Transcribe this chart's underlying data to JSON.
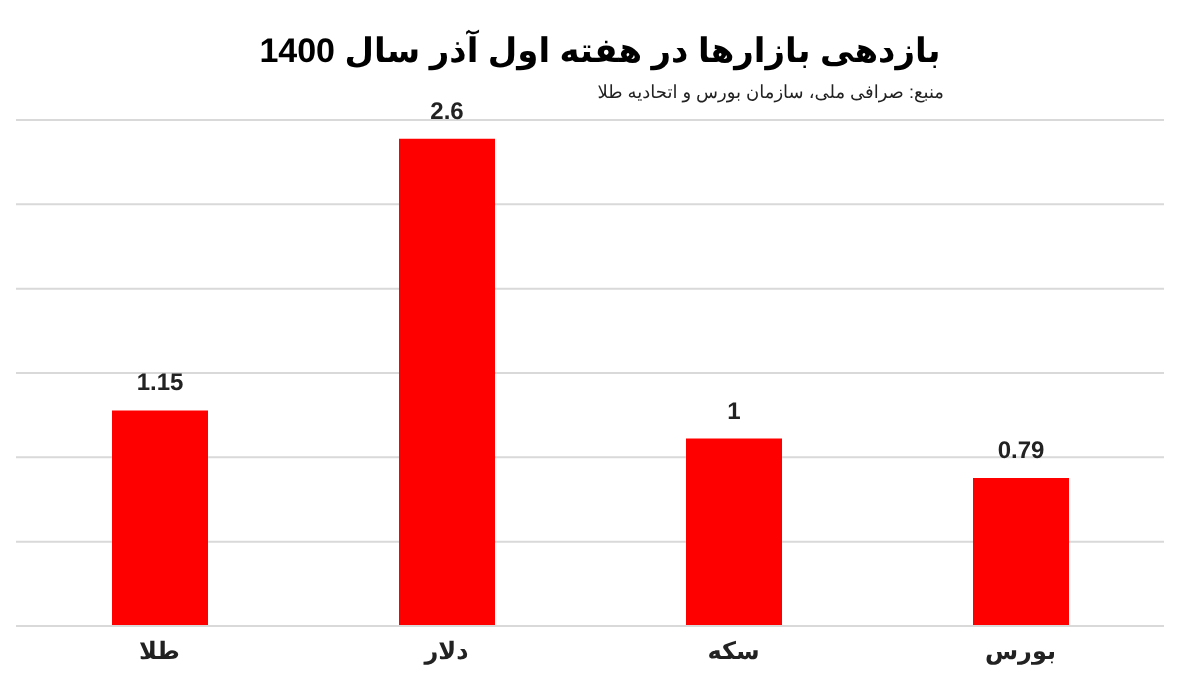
{
  "chart_data": {
    "type": "bar",
    "title": "بازدهی بازارها در هفته اول آذر سال 1400",
    "annotations": [
      "منبع: صرافی ملی، سازمان بورس و اتحادیه طلا"
    ],
    "categories": [
      "طلا",
      "دلار",
      "سکه",
      "بورس"
    ],
    "values": [
      1.15,
      2.6,
      1,
      0.79
    ],
    "color": "#ff0000",
    "tick_labels": "x",
    "grid": "y",
    "data_labels": true,
    "legend": false
  }
}
